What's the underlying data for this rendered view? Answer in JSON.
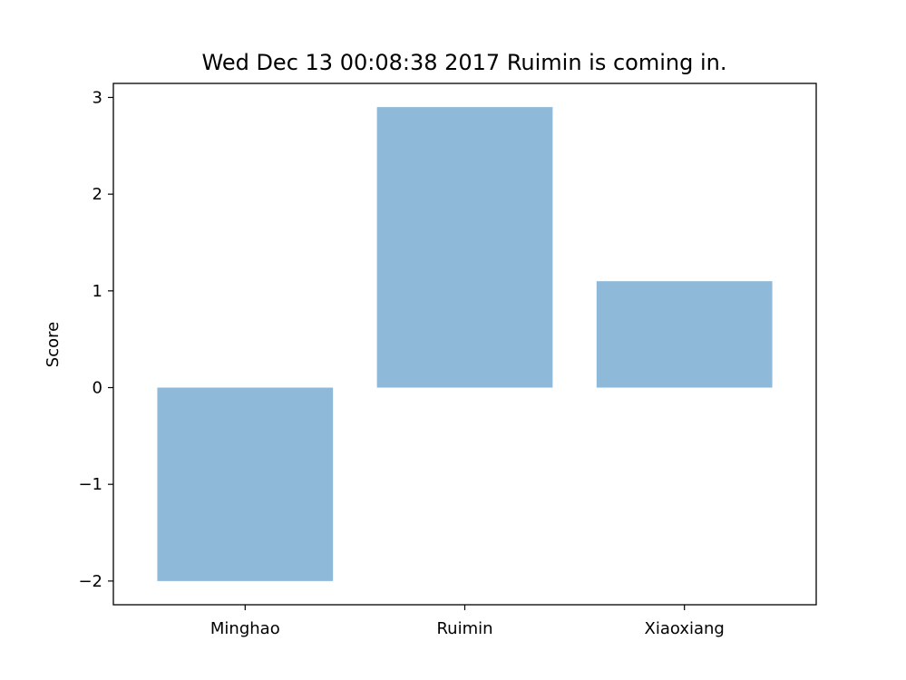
{
  "chart_data": {
    "type": "bar",
    "title": "Wed Dec 13 00:08:38 2017 Ruimin is coming in.",
    "xlabel": "",
    "ylabel": "Score",
    "categories": [
      "Minghao",
      "Ruimin",
      "Xiaoxiang"
    ],
    "values": [
      -2.0,
      2.9,
      1.1
    ],
    "ylim": [
      -2.245,
      3.145
    ],
    "yticks": [
      -2,
      -1,
      0,
      1,
      2,
      3
    ],
    "ytick_labels": [
      "−2",
      "−1",
      "0",
      "1",
      "2",
      "3"
    ],
    "bar_color": "#8fb9d9",
    "grid": false,
    "legend": "none"
  }
}
